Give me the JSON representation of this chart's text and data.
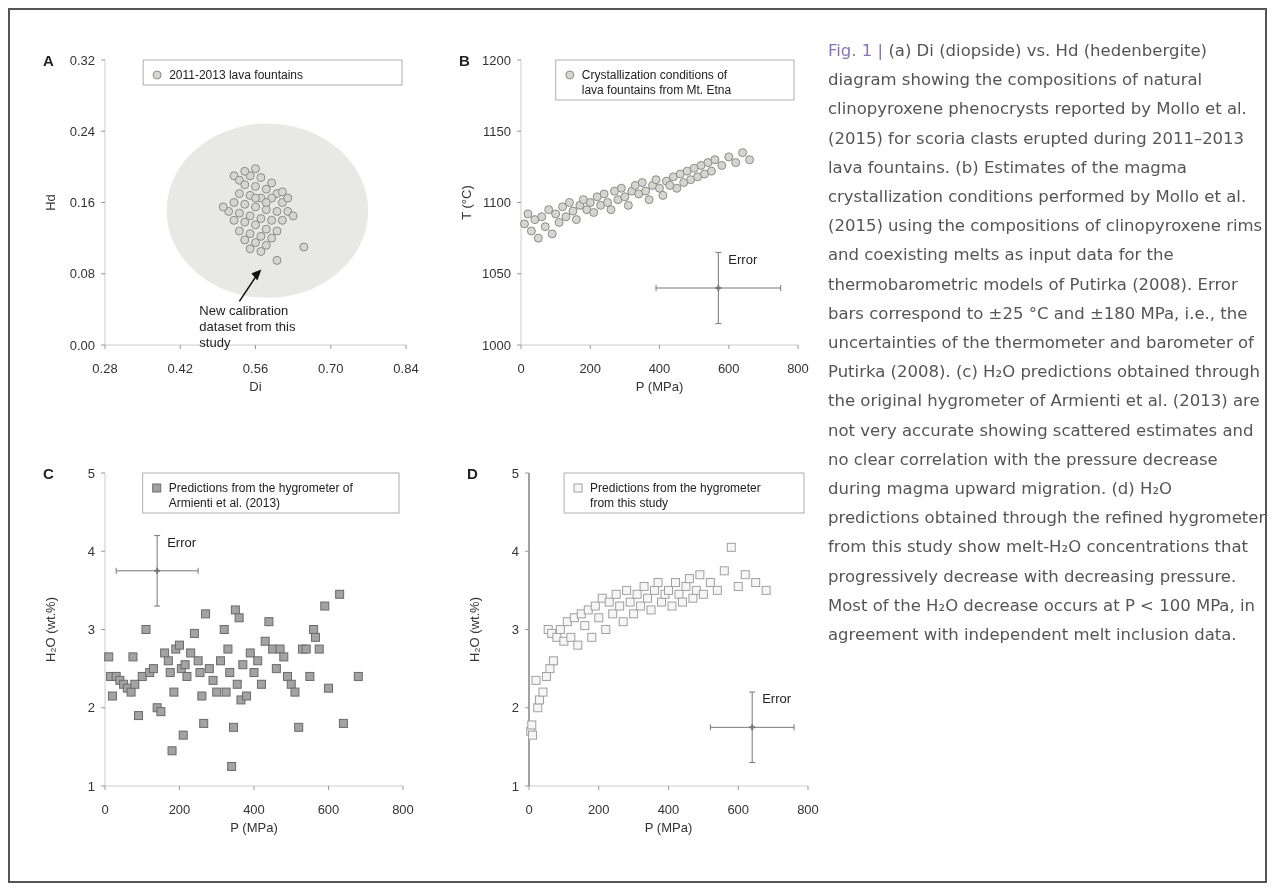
{
  "chart_data": [
    {
      "type": "scatter",
      "title": "A",
      "xlabel": "Di",
      "ylabel": "Hd",
      "xlim": [
        0.28,
        0.84
      ],
      "xticks": [
        0.28,
        0.42,
        0.56,
        {
          "value": 0.7,
          "label": "0.70"
        },
        0.84
      ],
      "ylim": [
        0,
        0.32
      ],
      "yticks": [
        {
          "value": 0,
          "label": "0.00"
        },
        0.08,
        0.16,
        0.24,
        0.32
      ],
      "legend": "top",
      "marker": "circle",
      "annotations": [
        "New calibration dataset from this study"
      ],
      "series": [
        {
          "name": "2011-2013 lava fountains",
          "color": "#d6d6d0",
          "x": [
            0.52,
            0.53,
            0.55,
            0.57,
            0.54,
            0.56,
            0.58,
            0.6,
            0.53,
            0.55,
            0.57,
            0.59,
            0.61,
            0.52,
            0.54,
            0.56,
            0.58,
            0.6,
            0.62,
            0.53,
            0.55,
            0.57,
            0.59,
            0.61,
            0.51,
            0.54,
            0.56,
            0.58,
            0.6,
            0.53,
            0.55,
            0.57,
            0.59,
            0.54,
            0.56,
            0.58,
            0.55,
            0.57,
            0.65,
            0.6,
            0.54,
            0.56,
            0.59,
            0.61,
            0.52,
            0.5,
            0.63,
            0.62,
            0.58,
            0.56
          ],
          "values": [
            0.19,
            0.185,
            0.19,
            0.188,
            0.18,
            0.178,
            0.175,
            0.17,
            0.17,
            0.168,
            0.165,
            0.165,
            0.16,
            0.16,
            0.158,
            0.155,
            0.152,
            0.15,
            0.15,
            0.148,
            0.145,
            0.142,
            0.14,
            0.14,
            0.15,
            0.138,
            0.135,
            0.13,
            0.128,
            0.128,
            0.125,
            0.122,
            0.12,
            0.118,
            0.115,
            0.112,
            0.108,
            0.105,
            0.11,
            0.095,
            0.195,
            0.198,
            0.182,
            0.172,
            0.14,
            0.155,
            0.145,
            0.165,
            0.16,
            0.165
          ]
        }
      ]
    },
    {
      "type": "scatter",
      "title": "B",
      "xlabel": "P (MPa)",
      "ylabel": "T (°C)",
      "xlim": [
        0,
        800
      ],
      "xticks": [
        0,
        200,
        400,
        600,
        800
      ],
      "ylim": [
        1000,
        1200
      ],
      "yticks": [
        1000,
        1050,
        1100,
        1150,
        1200
      ],
      "legend": "top",
      "marker": "circle",
      "annotations": [
        "Error"
      ],
      "series": [
        {
          "name": "Crystallization conditions of lava fountains from Mt. Etna",
          "color": "#d6d6d0",
          "x": [
            10,
            20,
            30,
            40,
            50,
            60,
            70,
            80,
            90,
            100,
            110,
            120,
            130,
            140,
            150,
            160,
            170,
            180,
            190,
            200,
            210,
            220,
            230,
            240,
            250,
            260,
            270,
            280,
            290,
            300,
            310,
            320,
            330,
            340,
            350,
            360,
            370,
            380,
            390,
            400,
            410,
            420,
            430,
            440,
            450,
            460,
            470,
            480,
            490,
            500,
            510,
            520,
            530,
            540,
            550,
            560,
            580,
            600,
            620,
            640,
            660
          ],
          "values": [
            1085,
            1092,
            1080,
            1088,
            1075,
            1090,
            1083,
            1095,
            1078,
            1092,
            1086,
            1097,
            1090,
            1100,
            1094,
            1088,
            1098,
            1102,
            1095,
            1100,
            1093,
            1104,
            1098,
            1106,
            1100,
            1095,
            1108,
            1102,
            1110,
            1104,
            1098,
            1108,
            1112,
            1106,
            1114,
            1108,
            1102,
            1112,
            1116,
            1110,
            1105,
            1115,
            1112,
            1118,
            1110,
            1120,
            1114,
            1122,
            1116,
            1124,
            1118,
            1126,
            1120,
            1128,
            1122,
            1130,
            1126,
            1132,
            1128,
            1135,
            1130
          ]
        },
        {
          "color": "#777777",
          "marker": "cross",
          "x": [
            570
          ],
          "values": [
            1040
          ],
          "errors": [
            25
          ],
          "xerrors": [
            180
          ]
        }
      ]
    },
    {
      "type": "scatter",
      "title": "C",
      "xlabel": "P (MPa)",
      "ylabel": "H₂O (wt.%)",
      "xlim": [
        0,
        800
      ],
      "xticks": [
        0,
        200,
        400,
        600,
        800
      ],
      "ylim": [
        1,
        5
      ],
      "yticks": [
        1,
        2,
        3,
        4,
        5
      ],
      "legend": "top",
      "marker": "square",
      "annotations": [
        "Error"
      ],
      "series": [
        {
          "name": "Predictions from the hygrometer of Armienti et al. (2013)",
          "color": "#a3a3a3",
          "x": [
            10,
            15,
            20,
            30,
            40,
            50,
            60,
            70,
            75,
            80,
            90,
            100,
            110,
            120,
            130,
            140,
            150,
            160,
            170,
            175,
            180,
            185,
            190,
            200,
            205,
            210,
            215,
            220,
            230,
            240,
            250,
            255,
            260,
            265,
            270,
            280,
            290,
            300,
            310,
            320,
            325,
            330,
            335,
            340,
            345,
            350,
            355,
            360,
            365,
            370,
            380,
            390,
            400,
            410,
            420,
            430,
            440,
            450,
            460,
            470,
            480,
            490,
            500,
            510,
            520,
            530,
            540,
            550,
            560,
            565,
            575,
            590,
            600,
            630,
            640,
            680
          ],
          "values": [
            2.65,
            2.4,
            2.15,
            2.4,
            2.35,
            2.3,
            2.25,
            2.2,
            2.65,
            2.3,
            1.9,
            2.4,
            3,
            2.45,
            2.5,
            2,
            1.95,
            2.7,
            2.6,
            2.45,
            1.45,
            2.2,
            2.75,
            2.8,
            2.5,
            1.65,
            2.55,
            2.4,
            2.7,
            2.95,
            2.6,
            2.45,
            2.15,
            1.8,
            3.2,
            2.5,
            2.35,
            2.2,
            2.6,
            3,
            2.2,
            2.75,
            2.45,
            1.25,
            1.75,
            3.25,
            2.3,
            3.15,
            2.1,
            2.55,
            2.15,
            2.7,
            2.45,
            2.6,
            2.3,
            2.85,
            3.1,
            2.75,
            2.5,
            2.75,
            2.65,
            2.4,
            2.3,
            2.2,
            1.75,
            2.75,
            2.75,
            2.4,
            3,
            2.9,
            2.75,
            3.3,
            2.25,
            3.45,
            1.8,
            2.4
          ]
        },
        {
          "color": "#777777",
          "marker": "cross",
          "x": [
            140
          ],
          "values": [
            3.75
          ],
          "errors": [
            0.45
          ],
          "xerrors": [
            110
          ]
        }
      ]
    },
    {
      "type": "scatter",
      "title": "D",
      "xlabel": "P (MPa)",
      "ylabel": "H₂O (wt.%)",
      "xlim": [
        0,
        800
      ],
      "xticks": [
        0,
        200,
        400,
        600,
        800
      ],
      "ylim": [
        1,
        5
      ],
      "yticks": [
        1,
        2,
        3,
        4,
        5
      ],
      "legend": "top",
      "marker": "square",
      "annotations": [
        "Error"
      ],
      "series": [
        {
          "name": "Predictions from the hygrometer from this study",
          "color": "#f6f6f6",
          "x": [
            5,
            8,
            10,
            20,
            25,
            30,
            40,
            50,
            55,
            60,
            65,
            70,
            80,
            90,
            100,
            110,
            120,
            130,
            140,
            150,
            160,
            170,
            180,
            190,
            200,
            210,
            220,
            230,
            240,
            250,
            260,
            270,
            280,
            290,
            300,
            310,
            320,
            330,
            340,
            350,
            360,
            370,
            380,
            390,
            400,
            410,
            420,
            430,
            440,
            450,
            460,
            470,
            480,
            490,
            500,
            520,
            540,
            560,
            580,
            600,
            620,
            650,
            680
          ],
          "values": [
            1.7,
            1.78,
            1.65,
            2.35,
            2,
            2.1,
            2.2,
            2.4,
            3,
            2.5,
            2.95,
            2.6,
            2.9,
            3,
            2.85,
            3.1,
            2.9,
            3.15,
            2.8,
            3.2,
            3.05,
            3.25,
            2.9,
            3.3,
            3.15,
            3.4,
            3,
            3.35,
            3.2,
            3.45,
            3.3,
            3.1,
            3.5,
            3.35,
            3.2,
            3.45,
            3.3,
            3.55,
            3.4,
            3.25,
            3.5,
            3.6,
            3.35,
            3.45,
            3.5,
            3.3,
            3.6,
            3.45,
            3.35,
            3.55,
            3.65,
            3.4,
            3.5,
            3.7,
            3.45,
            3.6,
            3.5,
            3.75,
            4.05,
            3.55,
            3.7,
            3.6,
            3.5
          ]
        },
        {
          "color": "#777777",
          "marker": "cross",
          "x": [
            640
          ],
          "values": [
            1.75
          ],
          "errors": [
            0.45
          ],
          "xerrors": [
            120
          ]
        }
      ]
    },
    {
      "type": "other",
      "title": "Fig. 1 |",
      "annotations": [
        "(a) Di (diopside) vs. Hd (hedenbergite) diagram showing the compositions of natural clinopyroxene phenocrysts reported by Mollo et al. (2015) for scoria clasts erupted during 2011–2013 lava fountains. (b) Estimates of the magma crystallization conditions performed by Mollo et al. (2015) using the compositions of clinopyroxene rims and coexisting melts as input data for the thermobarometric models of Putirka (2008). Error bars correspond to ±25 °C and ±180 MPa, i.e., the uncertainties of the thermometer and barometer of Putirka (2008). (c) H₂O predictions obtained through the original hygrometer of Armienti et al. (2013) are not very accurate showing scattered estimates and no clear correlation with the pressure decrease during magma upward migration. (d) H₂O predictions obtained through the refined hygrometer from this study show melt-H₂O concentrations that progressively decrease with decreasing pressure. Most of the H₂O decrease occurs at P < 100 MPa, in agreement with independent melt inclusion data."
      ]
    }
  ]
}
